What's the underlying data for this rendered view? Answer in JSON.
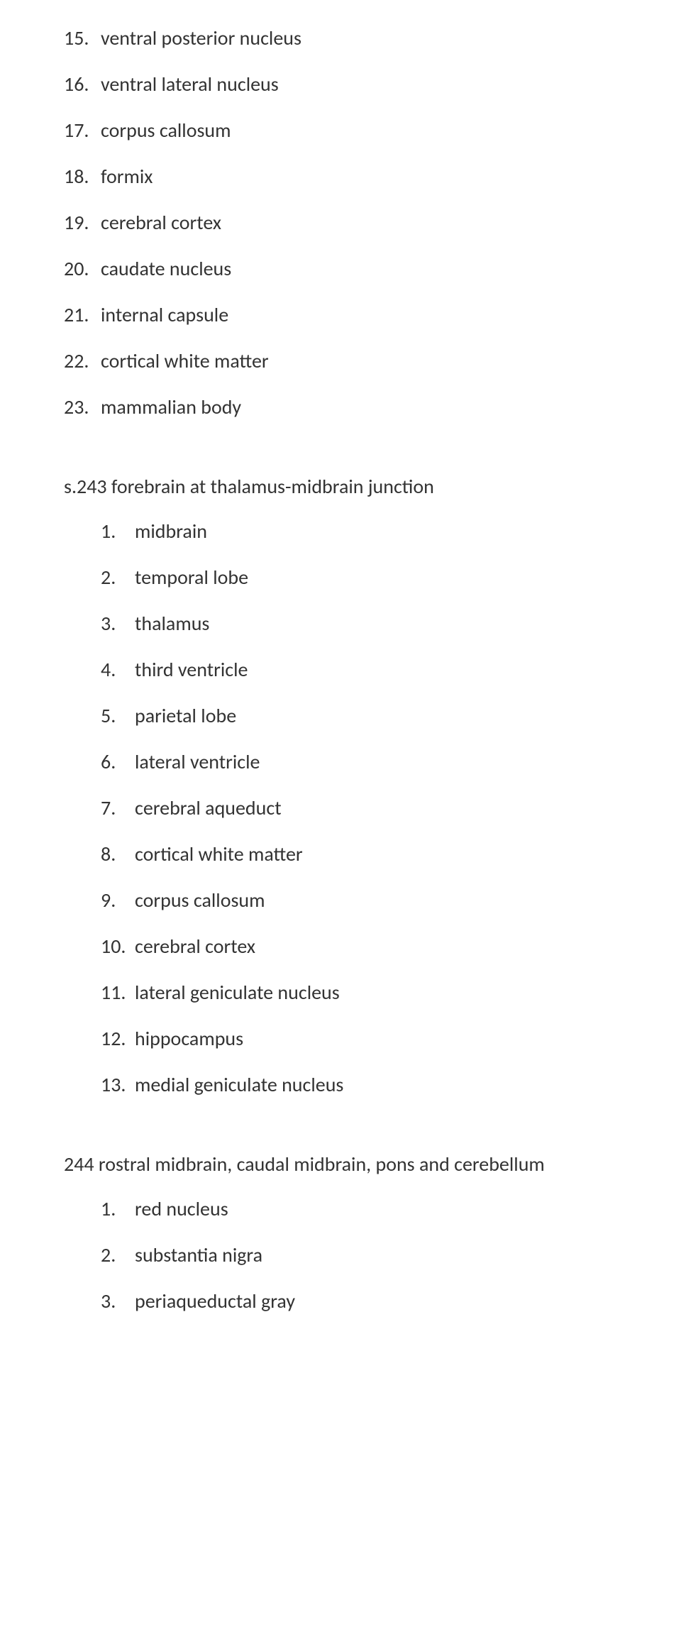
{
  "fontFamily": "Calibri, 'Segoe UI', Arial, sans-serif",
  "textColor": "#333333",
  "backgroundColor": "#ffffff",
  "fontSizePx": 28,
  "sections": [
    {
      "heading": null,
      "startNumber": 15,
      "indented": false,
      "items": [
        "ventral posterior nucleus",
        "ventral lateral nucleus",
        "corpus callosum",
        "formix",
        "cerebral cortex",
        "caudate nucleus",
        "internal capsule",
        "cortical white matter",
        "mammalian body"
      ]
    },
    {
      "heading": "s.243 forebrain at thalamus-midbrain junction",
      "startNumber": 1,
      "indented": true,
      "items": [
        "midbrain",
        "temporal lobe",
        "thalamus",
        "third ventricle",
        "parietal lobe",
        "lateral ventricle",
        "cerebral aqueduct",
        "cortical white matter",
        "corpus callosum",
        "cerebral cortex",
        "lateral geniculate nucleus",
        "hippocampus",
        "medial geniculate nucleus"
      ]
    },
    {
      "heading": "244 rostral midbrain, caudal midbrain, pons and cerebellum",
      "startNumber": 1,
      "indented": true,
      "items": [
        "red nucleus",
        "substantia nigra",
        "periaqueductal gray"
      ]
    }
  ]
}
